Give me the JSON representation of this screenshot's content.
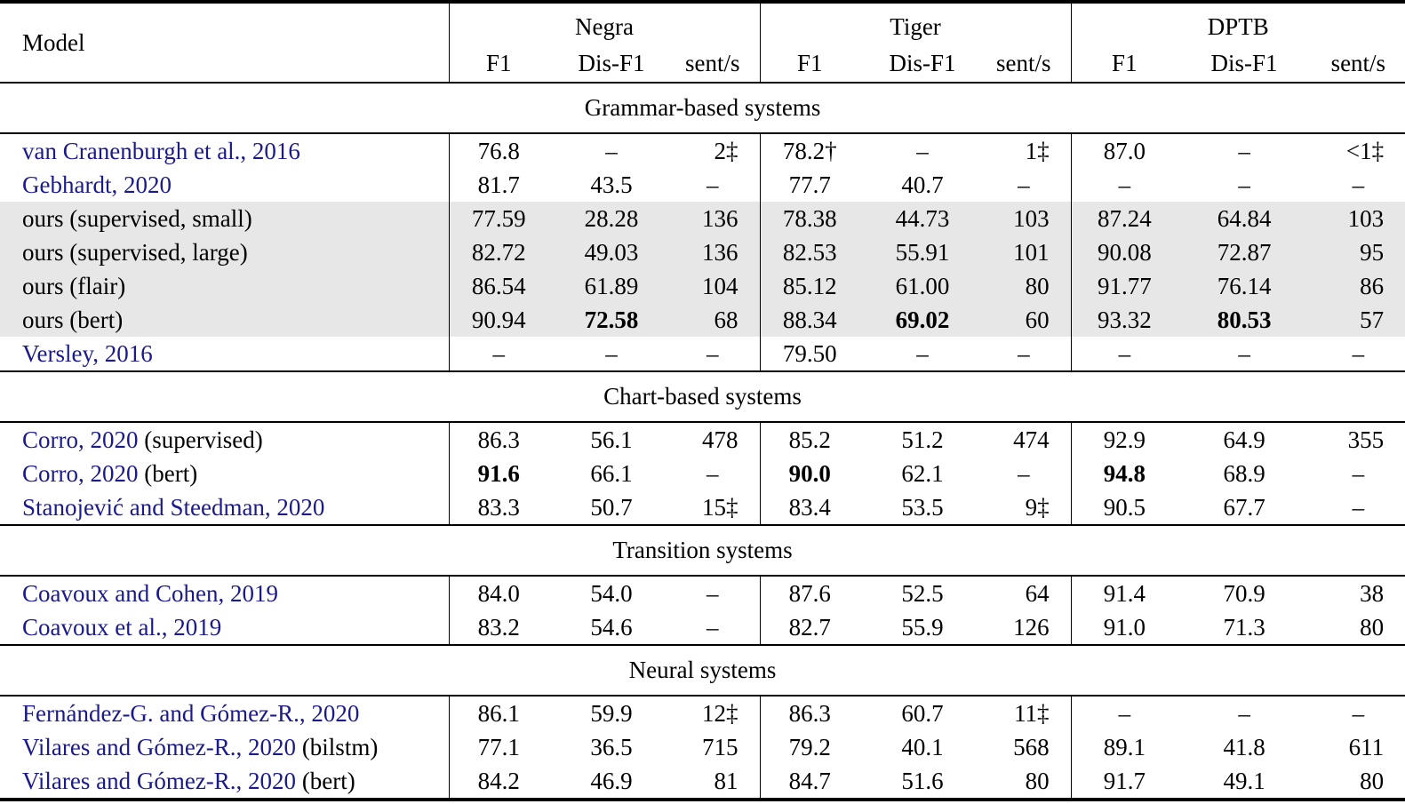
{
  "table": {
    "model_header": "Model",
    "groups": [
      {
        "name": "Negra"
      },
      {
        "name": "Tiger"
      },
      {
        "name": "DPTB"
      }
    ],
    "subheaders": [
      "F1",
      "Dis-F1",
      "sent/s"
    ],
    "link_color": "#1a1a8c",
    "highlight_color": "#e7e7e7",
    "sections": [
      {
        "title": "Grammar-based systems",
        "rows": [
          {
            "link": "van Cranenburgh et al., 2016",
            "rest": "",
            "highlight": false,
            "bold": [],
            "cells": [
              "76.8",
              "–",
              "2‡",
              "78.2†",
              "–",
              "1‡",
              "87.0",
              "–",
              "<1‡"
            ]
          },
          {
            "link": "Gebhardt, 2020",
            "rest": "",
            "highlight": false,
            "bold": [],
            "cells": [
              "81.7",
              "43.5",
              "–",
              "77.7",
              "40.7",
              "–",
              "–",
              "–",
              "–"
            ]
          },
          {
            "link": "",
            "rest": "ours (supervised, small)",
            "highlight": true,
            "bold": [],
            "cells": [
              "77.59",
              "28.28",
              "136",
              "78.38",
              "44.73",
              "103",
              "87.24",
              "64.84",
              "103"
            ]
          },
          {
            "link": "",
            "rest": "ours (supervised, large)",
            "highlight": true,
            "bold": [],
            "cells": [
              "82.72",
              "49.03",
              "136",
              "82.53",
              "55.91",
              "101",
              "90.08",
              "72.87",
              "95"
            ]
          },
          {
            "link": "",
            "rest": "ours (flair)",
            "highlight": true,
            "bold": [],
            "cells": [
              "86.54",
              "61.89",
              "104",
              "85.12",
              "61.00",
              "80",
              "91.77",
              "76.14",
              "86"
            ]
          },
          {
            "link": "",
            "rest": "ours (bert)",
            "highlight": true,
            "bold": [
              1,
              4,
              7
            ],
            "cells": [
              "90.94",
              "72.58",
              "68",
              "88.34",
              "69.02",
              "60",
              "93.32",
              "80.53",
              "57"
            ]
          },
          {
            "link": "Versley, 2016",
            "rest": "",
            "highlight": false,
            "bold": [],
            "cells": [
              "–",
              "–",
              "–",
              "79.50",
              "–",
              "–",
              "–",
              "–",
              "–"
            ]
          }
        ]
      },
      {
        "title": "Chart-based systems",
        "rows": [
          {
            "link": "Corro, 2020",
            "rest": " (supervised)",
            "highlight": false,
            "bold": [],
            "cells": [
              "86.3",
              "56.1",
              "478",
              "85.2",
              "51.2",
              "474",
              "92.9",
              "64.9",
              "355"
            ]
          },
          {
            "link": "Corro, 2020",
            "rest": " (bert)",
            "highlight": false,
            "bold": [
              0,
              3,
              6
            ],
            "cells": [
              "91.6",
              "66.1",
              "–",
              "90.0",
              "62.1",
              "–",
              "94.8",
              "68.9",
              "–"
            ]
          },
          {
            "link": "Stanojević and Steedman, 2020",
            "rest": "",
            "highlight": false,
            "bold": [],
            "cells": [
              "83.3",
              "50.7",
              "15‡",
              "83.4",
              "53.5",
              "9‡",
              "90.5",
              "67.7",
              "–"
            ]
          }
        ]
      },
      {
        "title": "Transition systems",
        "rows": [
          {
            "link": "Coavoux and Cohen, 2019",
            "rest": "",
            "highlight": false,
            "bold": [],
            "cells": [
              "84.0",
              "54.0",
              "–",
              "87.6",
              "52.5",
              "64",
              "91.4",
              "70.9",
              "38"
            ]
          },
          {
            "link": "Coavoux et al., 2019",
            "rest": "",
            "highlight": false,
            "bold": [],
            "cells": [
              "83.2",
              "54.6",
              "–",
              "82.7",
              "55.9",
              "126",
              "91.0",
              "71.3",
              "80"
            ]
          }
        ]
      },
      {
        "title": "Neural systems",
        "rows": [
          {
            "link": "Fernández-G. and Gómez-R., 2020",
            "rest": "",
            "highlight": false,
            "bold": [],
            "cells": [
              "86.1",
              "59.9",
              "12‡",
              "86.3",
              "60.7",
              "11‡",
              "–",
              "–",
              "–"
            ]
          },
          {
            "link": "Vilares and Gómez-R., 2020",
            "rest": " (bilstm)",
            "highlight": false,
            "bold": [],
            "cells": [
              "77.1",
              "36.5",
              "715",
              "79.2",
              "40.1",
              "568",
              "89.1",
              "41.8",
              "611"
            ]
          },
          {
            "link": "Vilares and Gómez-R., 2020",
            "rest": " (bert)",
            "highlight": false,
            "bold": [],
            "cells": [
              "84.2",
              "46.9",
              "81",
              "84.7",
              "51.6",
              "80",
              "91.7",
              "49.1",
              "80"
            ]
          }
        ]
      }
    ]
  }
}
